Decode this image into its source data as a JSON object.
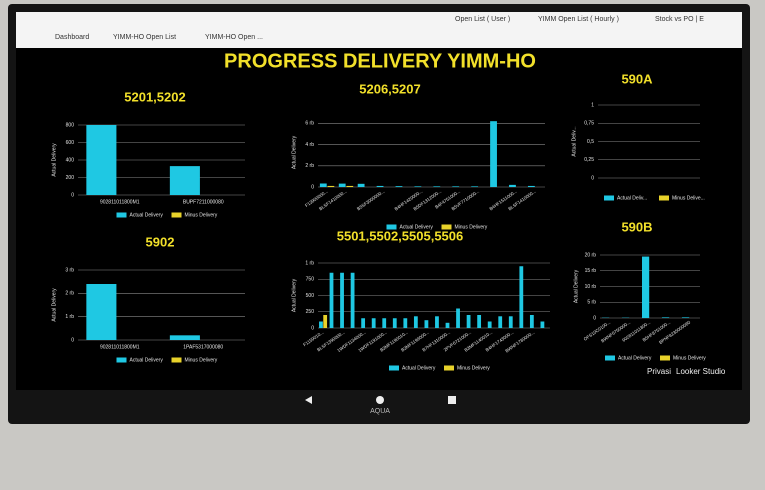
{
  "tabs": [
    "Dashboard",
    "YIMM-HO Open List",
    "YIMM-HO Open ...",
    "Open List ( User )",
    "YIMM Open List ( Hourly )",
    "Stock vs PO | E"
  ],
  "heading": "PROGRESS DELIVERY YIMM-HO",
  "footer": [
    "Privasi",
    "Looker Studio"
  ],
  "brand": "AQUA",
  "chart_data": [
    {
      "type": "bar",
      "title": "5201,5202",
      "y_label": "Actual Delivery",
      "categories": [
        "902811011800M1",
        "BUPF7211000080"
      ],
      "series": [
        {
          "name": "Actual Delivery",
          "color": "#1fc8e3",
          "values": [
            800,
            330
          ]
        },
        {
          "name": "Minus Delivery",
          "color": "#e8d22a",
          "values": [
            0,
            0
          ]
        }
      ],
      "ylim": [
        0,
        800
      ],
      "yticks": [
        0,
        200,
        400,
        600,
        800
      ],
      "grid": true
    },
    {
      "type": "bar",
      "title": "5206,5207",
      "y_label": "Actual Delivery",
      "categories": [
        "F13900000...",
        "BLSF1410000...",
        null,
        "B5SF3000000...",
        null,
        "B4HF1420000...",
        "B5DF1312000...",
        "B4F4751000...",
        "B5VF7710000...",
        null,
        "B4HF1511000...",
        "BLSF1410000..."
      ],
      "series": [
        {
          "name": "Actual Delivery",
          "color": "#1fc8e3",
          "values": [
            330,
            320,
            300,
            100,
            80,
            60,
            60,
            60,
            60,
            6200,
            200,
            100
          ]
        },
        {
          "name": "Minus Delivery",
          "color": "#e8d22a",
          "values": [
            100,
            100,
            0,
            0,
            0,
            0,
            0,
            0,
            0,
            0,
            0,
            0
          ]
        }
      ],
      "ylim": [
        0,
        6500
      ],
      "yticks": [
        0,
        {
          "value": 2000,
          "label": "2 rb"
        },
        {
          "value": 4000,
          "label": "4 rb"
        },
        {
          "value": 6000,
          "label": "6 rb"
        }
      ],
      "grid": true
    },
    {
      "type": "bar",
      "title": "590A",
      "y_label": "Actual Deliv...",
      "categories": [],
      "series": [
        {
          "name": "Actual Deliv...",
          "color": "#1fc8e3",
          "values": []
        },
        {
          "name": "Minus Delive...",
          "color": "#e8d22a",
          "values": []
        }
      ],
      "ylim": [
        0,
        1
      ],
      "yticks": [
        0,
        {
          "value": 0.25,
          "label": "0,25"
        },
        {
          "value": 0.5,
          "label": "0,5"
        },
        {
          "value": 0.75,
          "label": "0,75"
        },
        1
      ],
      "grid": true
    },
    {
      "type": "bar",
      "title": "5902",
      "y_label": "Actual Delivery",
      "categories": [
        "902811011800M1",
        "1PAF5317000080"
      ],
      "series": [
        {
          "name": "Actual Delivery",
          "color": "#1fc8e3",
          "values": [
            2400,
            200
          ]
        },
        {
          "name": "Minus Delivery",
          "color": "#e8d22a",
          "values": [
            0,
            0
          ]
        }
      ],
      "ylim": [
        0,
        3000
      ],
      "yticks": [
        0,
        {
          "value": 1000,
          "label": "1 rb"
        },
        {
          "value": 2000,
          "label": "2 rb"
        },
        {
          "value": 3000,
          "label": "3 rb"
        }
      ],
      "grid": true
    },
    {
      "type": "bar",
      "title": "5501,5502,5505,5506",
      "y_label": "Actual Delivery",
      "categories": [
        "F1159010...",
        null,
        "BLSF1390000...",
        null,
        "1WDF1134000...",
        null,
        "1WDF1191000...",
        null,
        "B3MF1190010...",
        null,
        "B3MF1199000...",
        null,
        "B7HF1310000...",
        null,
        "2PVF6721000...",
        null,
        "B3MF1140010...",
        null,
        "B4HF1743000...",
        null,
        "BWNF1780000...",
        null
      ],
      "series": [
        {
          "name": "Actual Delivery",
          "color": "#1fc8e3",
          "values": [
            100,
            850,
            850,
            850,
            150,
            150,
            150,
            150,
            150,
            180,
            120,
            180,
            80,
            300,
            200,
            200,
            100,
            180,
            180,
            950,
            200,
            100
          ]
        },
        {
          "name": "Minus Delivery",
          "color": "#e8d22a",
          "values": [
            200,
            0,
            0,
            0,
            0,
            0,
            0,
            0,
            0,
            0,
            0,
            0,
            0,
            0,
            0,
            0,
            0,
            0,
            0,
            0,
            0,
            0
          ]
        }
      ],
      "ylim": [
        0,
        1000
      ],
      "yticks": [
        0,
        250,
        500,
        750,
        {
          "value": 1000,
          "label": "1 rb"
        }
      ],
      "grid": true
    },
    {
      "type": "bar",
      "title": "590B",
      "y_label": "Actual Delivery",
      "categories": [
        "OFS10C0100...",
        "BWNF6750000...",
        "902811011800...",
        "B5HF8751000...",
        "BPNF8235000080"
      ],
      "series": [
        {
          "name": "Actual Delivery",
          "color": "#1fc8e3",
          "values": [
            100,
            100,
            19500,
            200,
            200
          ]
        },
        {
          "name": "Minus Delivery",
          "color": "#e8d22a",
          "values": [
            0,
            0,
            0,
            0,
            0
          ]
        }
      ],
      "ylim": [
        0,
        20000
      ],
      "yticks": [
        0,
        {
          "value": 5000,
          "label": "5 rb"
        },
        {
          "value": 10000,
          "label": "10 rb"
        },
        {
          "value": 15000,
          "label": "15 rb"
        },
        {
          "value": 20000,
          "label": "20 rb"
        }
      ],
      "grid": true
    }
  ]
}
